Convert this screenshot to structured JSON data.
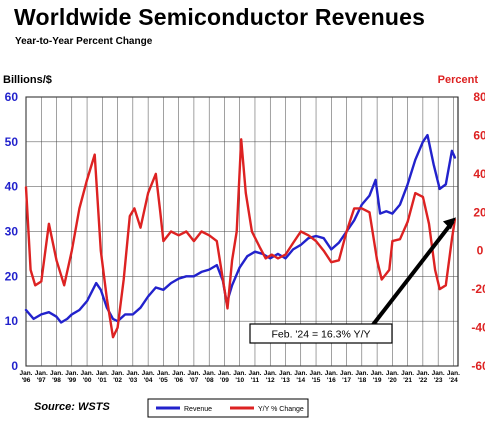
{
  "header": {
    "title": "Worldwide Semiconductor Revenues",
    "subtitle": "Year-to-Year Percent Change"
  },
  "footer": {
    "source": "Source: WSTS"
  },
  "chart_data": {
    "type": "line",
    "x_labels": [
      "Jan.\n'96",
      "Jan.\n'97",
      "Jan.\n'98",
      "Jan.\n'99",
      "Jan.\n'00",
      "Jan.\n'01",
      "Jan.\n'02",
      "Jan.\n'03",
      "Jan.\n'04",
      "Jan.\n'05",
      "Jan.\n'06",
      "Jan.\n'07",
      "Jan.\n'08",
      "Jan.\n'09",
      "Jan.\n'10",
      "Jan.\n'11",
      "Jan.\n'12",
      "Jan.\n'13",
      "Jan.\n'14",
      "Jan.\n'15",
      "Jan.\n'16",
      "Jan.\n'17",
      "Jan.\n'18",
      "Jan.\n'19",
      "Jan.\n'20",
      "Jan.\n'21",
      "Jan.\n'22",
      "Jan.\n'23",
      "Jan.\n'24"
    ],
    "y_left": {
      "label": "Billions/$",
      "range": [
        0,
        60
      ],
      "ticks": [
        0,
        10,
        20,
        30,
        40,
        50,
        60
      ],
      "color": "#2222cc"
    },
    "y_right": {
      "label": "Percent",
      "range": [
        -60,
        80
      ],
      "ticks": [
        -60,
        -40,
        -20,
        0,
        20,
        40,
        60,
        80
      ],
      "color": "#dd2222"
    },
    "grid": true,
    "legend": {
      "position": "bottom-center"
    },
    "series": [
      {
        "name": "Revenue",
        "axis": "left",
        "color": "#2222cc",
        "points": [
          [
            1996,
            12.5
          ],
          [
            1996.5,
            10.5
          ],
          [
            1997,
            11.5
          ],
          [
            1997.5,
            12
          ],
          [
            1998,
            11
          ],
          [
            1998.3,
            9.7
          ],
          [
            1998.7,
            10.5
          ],
          [
            1999,
            11.5
          ],
          [
            1999.5,
            12.5
          ],
          [
            2000,
            14.5
          ],
          [
            2000.6,
            18.5
          ],
          [
            2000.9,
            17
          ],
          [
            2001.3,
            13
          ],
          [
            2001.7,
            10.5
          ],
          [
            2002,
            10
          ],
          [
            2002.5,
            11.5
          ],
          [
            2003,
            11.5
          ],
          [
            2003.5,
            13
          ],
          [
            2004,
            15.5
          ],
          [
            2004.5,
            17.5
          ],
          [
            2005,
            17
          ],
          [
            2005.5,
            18.5
          ],
          [
            2006,
            19.5
          ],
          [
            2006.5,
            20
          ],
          [
            2007,
            20
          ],
          [
            2007.5,
            21
          ],
          [
            2008,
            21.5
          ],
          [
            2008.5,
            22.5
          ],
          [
            2008.9,
            19
          ],
          [
            2009.15,
            14
          ],
          [
            2009.5,
            18
          ],
          [
            2010,
            22
          ],
          [
            2010.5,
            24.5
          ],
          [
            2011,
            25.5
          ],
          [
            2011.5,
            25
          ],
          [
            2012,
            24
          ],
          [
            2012.5,
            25
          ],
          [
            2013,
            24
          ],
          [
            2013.5,
            26
          ],
          [
            2014,
            27
          ],
          [
            2014.5,
            28.5
          ],
          [
            2015,
            29
          ],
          [
            2015.5,
            28.5
          ],
          [
            2016,
            26
          ],
          [
            2016.5,
            27.5
          ],
          [
            2017,
            30
          ],
          [
            2017.5,
            32.5
          ],
          [
            2018,
            36
          ],
          [
            2018.5,
            38
          ],
          [
            2018.9,
            41.5
          ],
          [
            2019.2,
            34
          ],
          [
            2019.6,
            34.5
          ],
          [
            2020,
            34
          ],
          [
            2020.5,
            36
          ],
          [
            2021,
            40.5
          ],
          [
            2021.5,
            46
          ],
          [
            2022,
            50
          ],
          [
            2022.3,
            51.5
          ],
          [
            2022.7,
            45
          ],
          [
            2023.1,
            39.5
          ],
          [
            2023.5,
            40.5
          ],
          [
            2023.9,
            48
          ],
          [
            2024.1,
            46.5
          ]
        ]
      },
      {
        "name": "Y/Y % Change",
        "axis": "right",
        "color": "#dd2222",
        "points": [
          [
            1996,
            33
          ],
          [
            1996.3,
            -10
          ],
          [
            1996.6,
            -18
          ],
          [
            1997,
            -16
          ],
          [
            1997.5,
            14
          ],
          [
            1998,
            -5
          ],
          [
            1998.5,
            -18
          ],
          [
            1999,
            0
          ],
          [
            1999.5,
            22
          ],
          [
            2000,
            37
          ],
          [
            2000.5,
            50
          ],
          [
            2000.9,
            0
          ],
          [
            2001.3,
            -25
          ],
          [
            2001.7,
            -45
          ],
          [
            2002,
            -40
          ],
          [
            2002.4,
            -15
          ],
          [
            2002.8,
            18
          ],
          [
            2003.1,
            22
          ],
          [
            2003.5,
            12
          ],
          [
            2004,
            30
          ],
          [
            2004.5,
            40
          ],
          [
            2004.8,
            20
          ],
          [
            2005,
            5
          ],
          [
            2005.5,
            10
          ],
          [
            2006,
            8
          ],
          [
            2006.5,
            10
          ],
          [
            2007,
            5
          ],
          [
            2007.5,
            10
          ],
          [
            2008,
            8
          ],
          [
            2008.5,
            5
          ],
          [
            2008.9,
            -15
          ],
          [
            2009.2,
            -30
          ],
          [
            2009.5,
            -5
          ],
          [
            2009.8,
            10
          ],
          [
            2010.1,
            58
          ],
          [
            2010.4,
            30
          ],
          [
            2010.8,
            10
          ],
          [
            2011.3,
            2
          ],
          [
            2011.7,
            -4
          ],
          [
            2012.1,
            -2
          ],
          [
            2012.5,
            -4
          ],
          [
            2013,
            -2
          ],
          [
            2013.5,
            4
          ],
          [
            2014,
            10
          ],
          [
            2014.5,
            8
          ],
          [
            2015,
            5
          ],
          [
            2015.5,
            0
          ],
          [
            2016,
            -6
          ],
          [
            2016.5,
            -5
          ],
          [
            2017,
            10
          ],
          [
            2017.5,
            22
          ],
          [
            2018,
            22
          ],
          [
            2018.5,
            20
          ],
          [
            2019,
            -5
          ],
          [
            2019.3,
            -15
          ],
          [
            2019.8,
            -10
          ],
          [
            2020,
            5
          ],
          [
            2020.5,
            6
          ],
          [
            2021,
            15
          ],
          [
            2021.5,
            30
          ],
          [
            2022,
            28
          ],
          [
            2022.4,
            14
          ],
          [
            2022.8,
            -10
          ],
          [
            2023.1,
            -20
          ],
          [
            2023.5,
            -18
          ],
          [
            2023.9,
            6
          ],
          [
            2024.1,
            16.3
          ]
        ]
      }
    ],
    "annotation": {
      "text": "Feb. '24 = 16.3% Y/Y",
      "points_to": [
        2024.1,
        16.3
      ],
      "axis": "right"
    }
  }
}
